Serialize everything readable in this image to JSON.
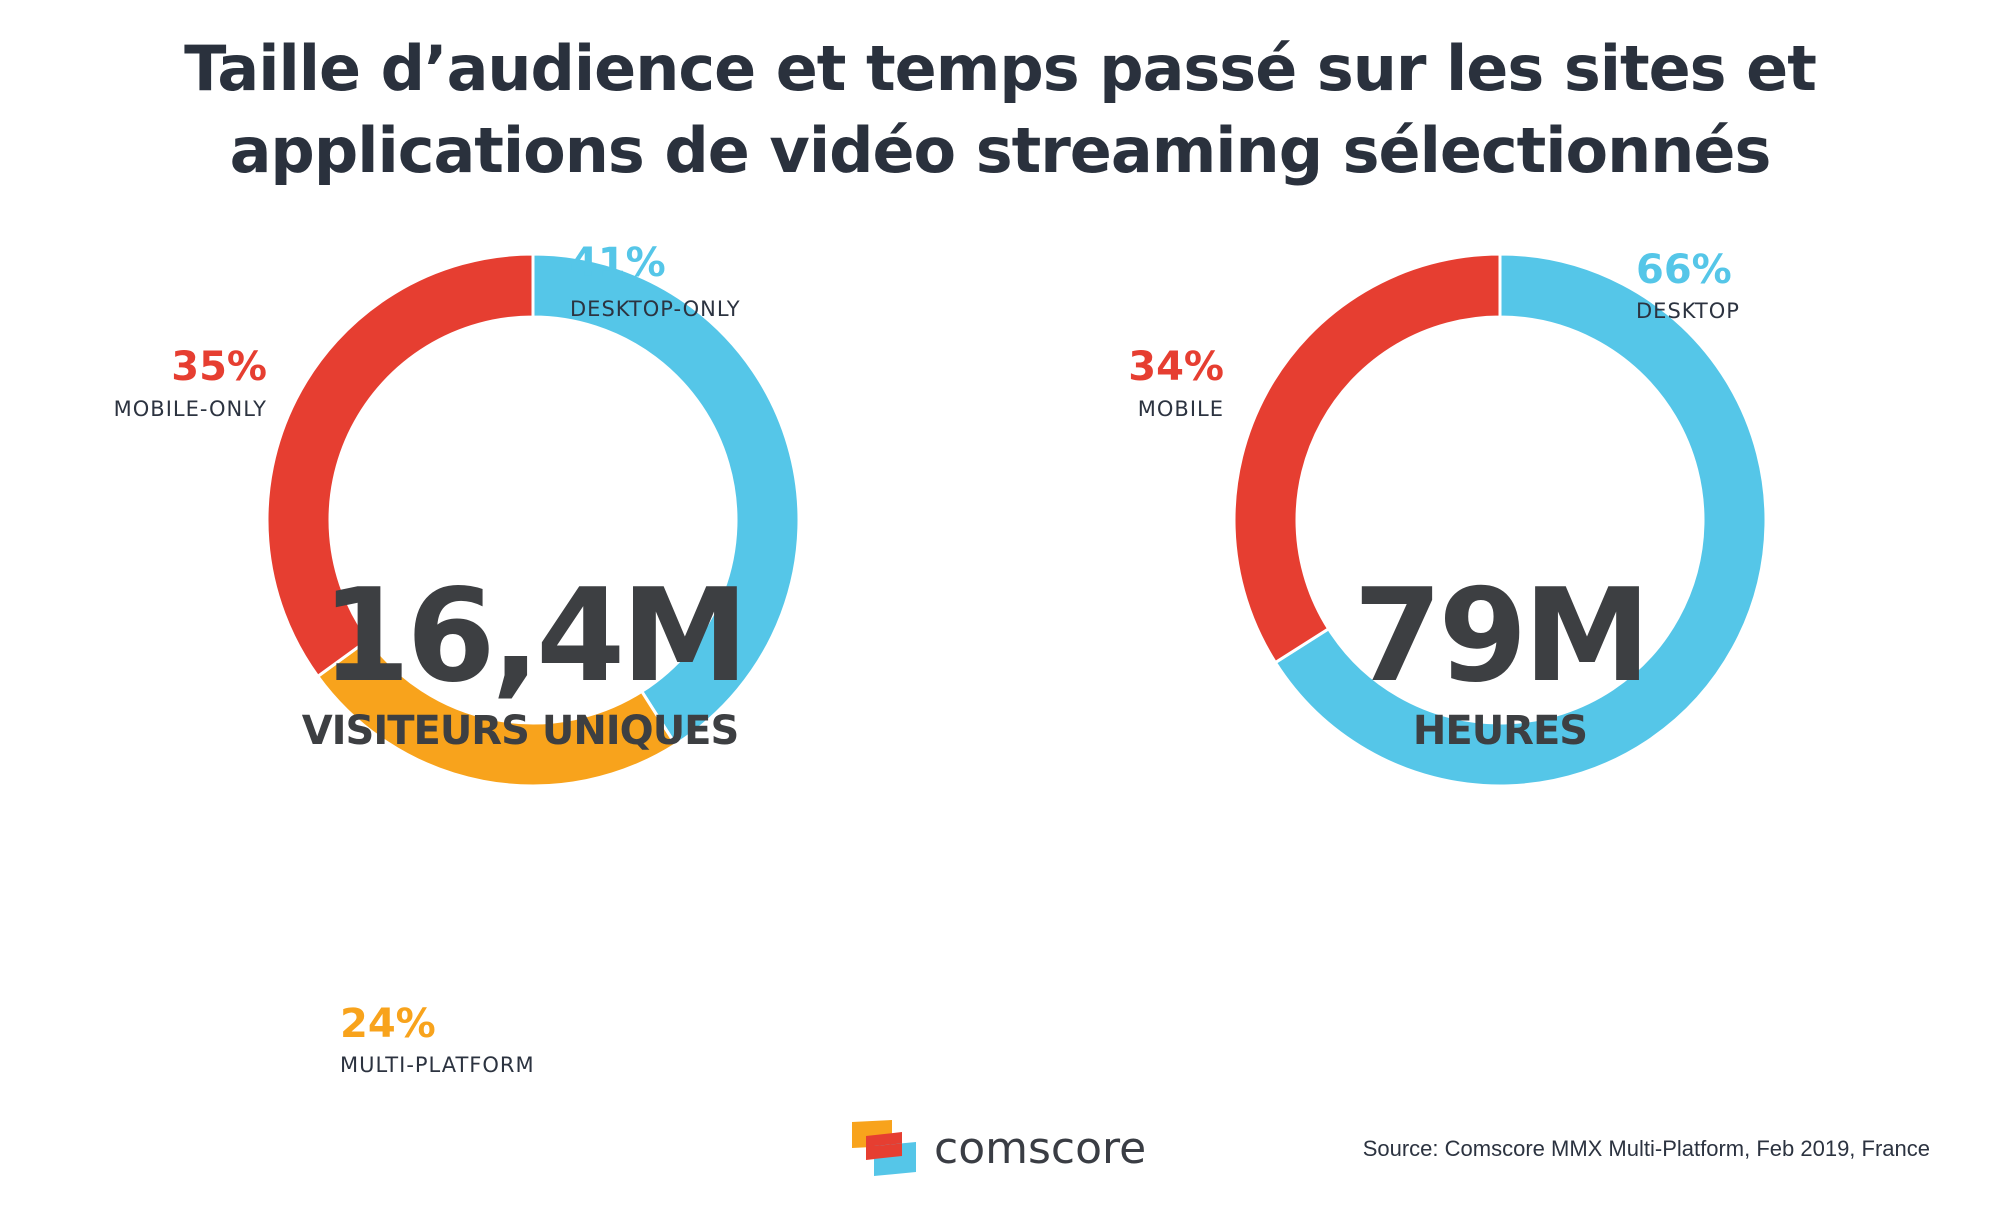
{
  "title": {
    "line1": "Taille d’audience et temps passé sur les sites et",
    "line2": "applications de vidéo streaming sélectionnés"
  },
  "colors": {
    "desktop": "#55c6e8",
    "mobile": "#e63e31",
    "multi": "#f8a31c",
    "text": "#2c3340"
  },
  "chart_data": [
    {
      "type": "pie",
      "variant": "donut",
      "center_value": "16,4M",
      "center_caption": "VISITEURS UNIQUES",
      "slices": [
        {
          "label": "DESKTOP-ONLY",
          "pct_text": "41%",
          "value": 41,
          "color": "#55c6e8"
        },
        {
          "label": "MULTI-PLATFORM",
          "pct_text": "24%",
          "value": 24,
          "color": "#f8a31c"
        },
        {
          "label": "MOBILE-ONLY",
          "pct_text": "35%",
          "value": 35,
          "color": "#e63e31"
        }
      ]
    },
    {
      "type": "pie",
      "variant": "donut",
      "center_value": "79M",
      "center_caption": "HEURES",
      "slices": [
        {
          "label": "DESKTOP",
          "pct_text": "66%",
          "value": 66,
          "color": "#55c6e8"
        },
        {
          "label": "MOBILE",
          "pct_text": "34%",
          "value": 34,
          "color": "#e63e31"
        }
      ]
    }
  ],
  "logo": {
    "text": "comscore"
  },
  "source": "Source: Comscore MMX Multi-Platform, Feb 2019, France"
}
